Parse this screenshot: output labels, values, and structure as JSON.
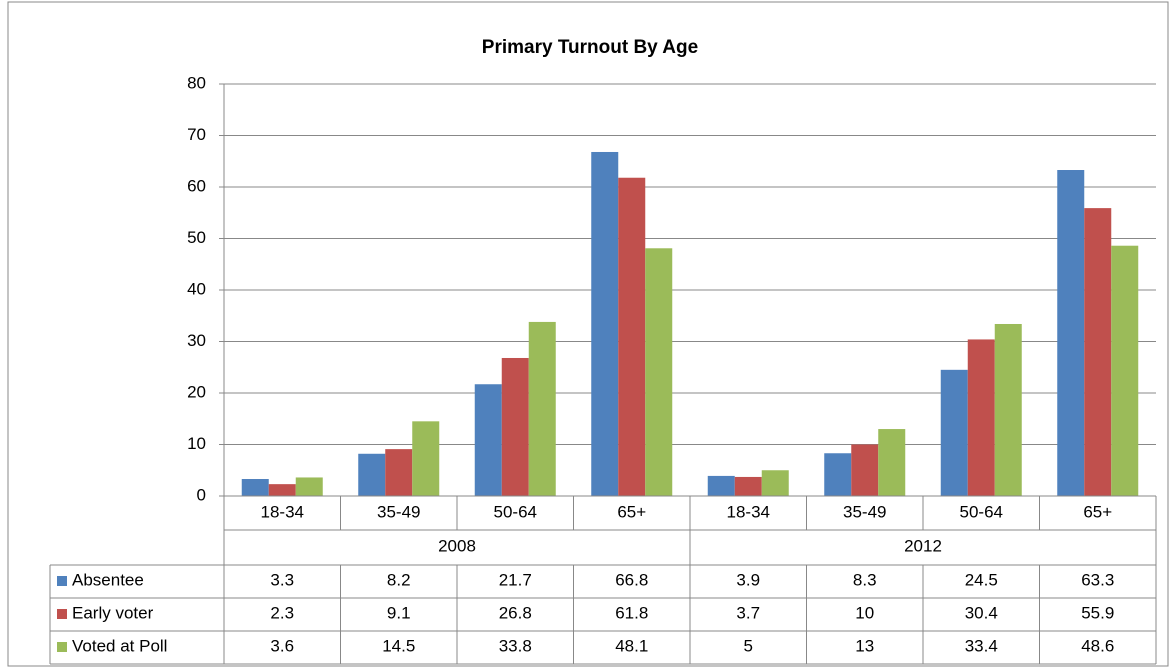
{
  "chart_data": {
    "type": "bar",
    "title": "Primary Turnout By Age",
    "categories": [
      "18-34",
      "35-49",
      "50-64",
      "65+",
      "18-34",
      "35-49",
      "50-64",
      "65+"
    ],
    "group_labels": [
      "2008",
      "2012"
    ],
    "series": [
      {
        "name": "Absentee",
        "color": "#4f81bd",
        "values": [
          3.3,
          8.2,
          21.7,
          66.8,
          3.9,
          8.3,
          24.5,
          63.3
        ]
      },
      {
        "name": "Early voter",
        "color": "#c0504d",
        "values": [
          2.3,
          9.1,
          26.8,
          61.8,
          3.7,
          10,
          30.4,
          55.9
        ]
      },
      {
        "name": "Voted at Poll",
        "color": "#9bbb59",
        "values": [
          3.6,
          14.5,
          33.8,
          48.1,
          5,
          13,
          33.4,
          48.6
        ]
      }
    ],
    "ylim": [
      0,
      80
    ],
    "yticks": [
      0,
      10,
      20,
      30,
      40,
      50,
      60,
      70,
      80
    ],
    "grid": true,
    "data_table": true
  }
}
